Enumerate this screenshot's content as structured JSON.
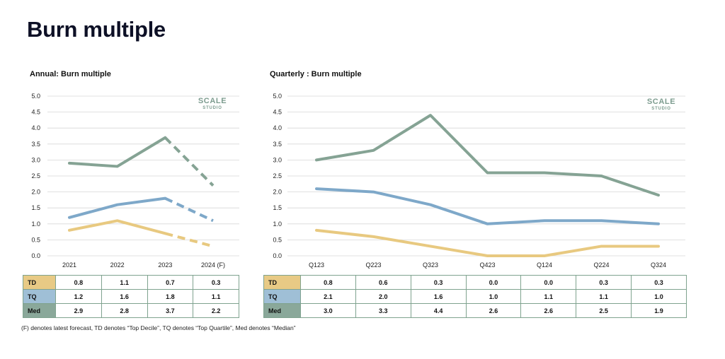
{
  "page": {
    "title": "Burn multiple",
    "footnote": "(F) denotes latest forecast, TD denotes “Top Decile”, TQ denotes “Top Quartile”, Med denotes “Median”"
  },
  "logo": {
    "main": "SCALE",
    "sub": "STUDIO"
  },
  "colors": {
    "TD": "#e8c980",
    "TQ": "#7ea8c9",
    "Med": "#85a394",
    "TD_cell": "#e8ca85",
    "TQ_cell": "#9fbfd6",
    "Med_cell": "#8aa89a",
    "grid": "#d7d7d7",
    "table_border": "#7fa38f"
  },
  "chart_data": [
    {
      "title": "Annual: Burn multiple",
      "type": "line",
      "categories": [
        "2021",
        "2022",
        "2023",
        "2024 (F)"
      ],
      "ylim": [
        0,
        5
      ],
      "yticks": [
        "0.0",
        "0.5",
        "1.0",
        "1.5",
        "2.0",
        "2.5",
        "3.0",
        "3.5",
        "4.0",
        "4.5",
        "5.0"
      ],
      "grid": true,
      "forecast_from_index": 2,
      "series": [
        {
          "name": "TD",
          "values": [
            0.8,
            1.1,
            0.7,
            0.3
          ],
          "labels": [
            "0.8",
            "1.1",
            "0.7",
            "0.3"
          ]
        },
        {
          "name": "TQ",
          "values": [
            1.2,
            1.6,
            1.8,
            1.1
          ],
          "labels": [
            "1.2",
            "1.6",
            "1.8",
            "1.1"
          ]
        },
        {
          "name": "Med",
          "values": [
            2.9,
            2.8,
            3.7,
            2.2
          ],
          "labels": [
            "2.9",
            "2.8",
            "3.7",
            "2.2"
          ]
        }
      ]
    },
    {
      "title": "Quarterly : Burn multiple",
      "type": "line",
      "categories": [
        "Q123",
        "Q223",
        "Q323",
        "Q423",
        "Q124",
        "Q224",
        "Q324"
      ],
      "ylim": [
        0,
        5
      ],
      "yticks": [
        "0.0",
        "0.5",
        "1.0",
        "1.5",
        "2.0",
        "2.5",
        "3.0",
        "3.5",
        "4.0",
        "4.5",
        "5.0"
      ],
      "grid": true,
      "forecast_from_index": null,
      "series": [
        {
          "name": "TD",
          "values": [
            0.8,
            0.6,
            0.3,
            0.0,
            0.0,
            0.3,
            0.3
          ],
          "labels": [
            "0.8",
            "0.6",
            "0.3",
            "0.0",
            "0.0",
            "0.3",
            "0.3"
          ]
        },
        {
          "name": "TQ",
          "values": [
            2.1,
            2.0,
            1.6,
            1.0,
            1.1,
            1.1,
            1.0
          ],
          "labels": [
            "2.1",
            "2.0",
            "1.6",
            "1.0",
            "1.1",
            "1.1",
            "1.0"
          ]
        },
        {
          "name": "Med",
          "values": [
            3.0,
            3.3,
            4.4,
            2.6,
            2.6,
            2.5,
            1.9
          ],
          "labels": [
            "3.0",
            "3.3",
            "4.4",
            "2.6",
            "2.6",
            "2.5",
            "1.9"
          ]
        }
      ]
    }
  ]
}
